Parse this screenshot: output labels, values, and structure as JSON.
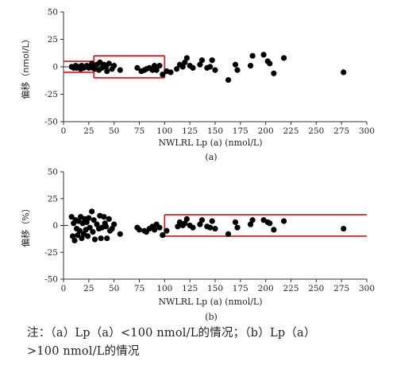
{
  "chart_data": [
    {
      "type": "scatter",
      "panel": "(a)",
      "xlabel": "NWLRL Lp (a) (nmol/L)",
      "ylabel": "偏移（nmol/L）",
      "xlim": [
        0,
        300
      ],
      "ylim": [
        -50,
        50
      ],
      "xticks": [
        0,
        25,
        50,
        75,
        100,
        125,
        150,
        175,
        200,
        225,
        250,
        275,
        300
      ],
      "yticks": [
        -50,
        -25,
        0,
        25,
        50
      ],
      "grid": false,
      "limit_lines": {
        "color": "#e02020",
        "segments": [
          {
            "x": [
              0,
              30
            ],
            "y": 5
          },
          {
            "x": [
              0,
              30
            ],
            "y": -5
          },
          {
            "x": [
              30,
              100
            ],
            "y": 10
          },
          {
            "x": [
              30,
              100
            ],
            "y": -10
          }
        ]
      },
      "points": [
        [
          8,
          0
        ],
        [
          10,
          -1
        ],
        [
          12,
          1
        ],
        [
          13,
          -1
        ],
        [
          15,
          0
        ],
        [
          17,
          -2
        ],
        [
          18,
          1
        ],
        [
          20,
          -1
        ],
        [
          22,
          0
        ],
        [
          23,
          1
        ],
        [
          25,
          -1
        ],
        [
          26,
          0
        ],
        [
          28,
          3
        ],
        [
          29,
          -1
        ],
        [
          30,
          1
        ],
        [
          31,
          -2
        ],
        [
          33,
          2
        ],
        [
          35,
          -3
        ],
        [
          36,
          4
        ],
        [
          38,
          -1
        ],
        [
          40,
          2
        ],
        [
          42,
          0
        ],
        [
          43,
          -4
        ],
        [
          45,
          3
        ],
        [
          48,
          -2
        ],
        [
          50,
          1
        ],
        [
          56,
          -3
        ],
        [
          73,
          -1
        ],
        [
          77,
          -4
        ],
        [
          80,
          -3
        ],
        [
          82,
          -2
        ],
        [
          85,
          -1
        ],
        [
          87,
          -2
        ],
        [
          88,
          -3
        ],
        [
          90,
          1
        ],
        [
          92,
          -3
        ],
        [
          95,
          1
        ],
        [
          98,
          -7
        ],
        [
          102,
          -4
        ],
        [
          106,
          -5
        ],
        [
          112,
          -2
        ],
        [
          115,
          2
        ],
        [
          118,
          0
        ],
        [
          120,
          4
        ],
        [
          122,
          8
        ],
        [
          125,
          1
        ],
        [
          128,
          -1
        ],
        [
          135,
          2
        ],
        [
          137,
          6
        ],
        [
          142,
          -1
        ],
        [
          145,
          0
        ],
        [
          147,
          6
        ],
        [
          150,
          -3
        ],
        [
          163,
          -12
        ],
        [
          170,
          2
        ],
        [
          172,
          -3
        ],
        [
          185,
          1
        ],
        [
          187,
          10
        ],
        [
          198,
          11
        ],
        [
          202,
          5
        ],
        [
          204,
          3
        ],
        [
          208,
          -6
        ],
        [
          218,
          8
        ],
        [
          277,
          -5
        ]
      ]
    },
    {
      "type": "scatter",
      "panel": "(b)",
      "xlabel": "NWLRL Lp (a) (nmol/L)",
      "ylabel": "偏移（%）",
      "xlim": [
        0,
        300
      ],
      "ylim": [
        -50,
        50
      ],
      "xticks": [
        0,
        25,
        50,
        75,
        100,
        125,
        150,
        175,
        200,
        225,
        250,
        275,
        300
      ],
      "yticks": [
        -50,
        -25,
        0,
        25,
        50
      ],
      "grid": false,
      "limit_lines": {
        "color": "#e02020",
        "segments": [
          {
            "x": [
              100,
              300
            ],
            "y": 10
          },
          {
            "x": [
              100,
              300
            ],
            "y": -10
          }
        ]
      },
      "points": [
        [
          8,
          8
        ],
        [
          9,
          -10
        ],
        [
          10,
          2
        ],
        [
          11,
          -14
        ],
        [
          12,
          5
        ],
        [
          13,
          -3
        ],
        [
          14,
          -9
        ],
        [
          15,
          4
        ],
        [
          16,
          -5
        ],
        [
          17,
          8
        ],
        [
          18,
          -12
        ],
        [
          19,
          2
        ],
        [
          20,
          -8
        ],
        [
          21,
          6
        ],
        [
          22,
          -4
        ],
        [
          23,
          3
        ],
        [
          24,
          -10
        ],
        [
          25,
          7
        ],
        [
          26,
          -2
        ],
        [
          28,
          13
        ],
        [
          29,
          -6
        ],
        [
          30,
          5
        ],
        [
          31,
          -13
        ],
        [
          33,
          1
        ],
        [
          35,
          -3
        ],
        [
          36,
          9
        ],
        [
          37,
          -12
        ],
        [
          38,
          -2
        ],
        [
          40,
          8
        ],
        [
          41,
          2
        ],
        [
          42,
          -1
        ],
        [
          43,
          -12
        ],
        [
          45,
          6
        ],
        [
          46,
          -5
        ],
        [
          48,
          -3
        ],
        [
          50,
          1
        ],
        [
          56,
          -8
        ],
        [
          73,
          -2
        ],
        [
          75,
          -4
        ],
        [
          80,
          -5
        ],
        [
          82,
          -6
        ],
        [
          85,
          -3
        ],
        [
          88,
          -1
        ],
        [
          90,
          -4
        ],
        [
          92,
          1
        ],
        [
          95,
          -2
        ],
        [
          98,
          -9
        ],
        [
          102,
          -5
        ],
        [
          113,
          -1
        ],
        [
          115,
          3
        ],
        [
          118,
          0
        ],
        [
          120,
          2
        ],
        [
          122,
          6
        ],
        [
          125,
          0
        ],
        [
          128,
          -2
        ],
        [
          135,
          1
        ],
        [
          137,
          5
        ],
        [
          142,
          -1
        ],
        [
          145,
          -2
        ],
        [
          147,
          4
        ],
        [
          150,
          -3
        ],
        [
          163,
          -8
        ],
        [
          170,
          3
        ],
        [
          172,
          -2
        ],
        [
          185,
          1
        ],
        [
          187,
          5
        ],
        [
          198,
          5
        ],
        [
          202,
          3
        ],
        [
          204,
          2
        ],
        [
          208,
          -4
        ],
        [
          218,
          4
        ],
        [
          277,
          -3
        ]
      ]
    }
  ],
  "note": {
    "line1": "注：（a）Lp（a）<100 nmol/L的情况；（b）Lp（a）",
    "line2": ">100 nmol/L的情况"
  }
}
